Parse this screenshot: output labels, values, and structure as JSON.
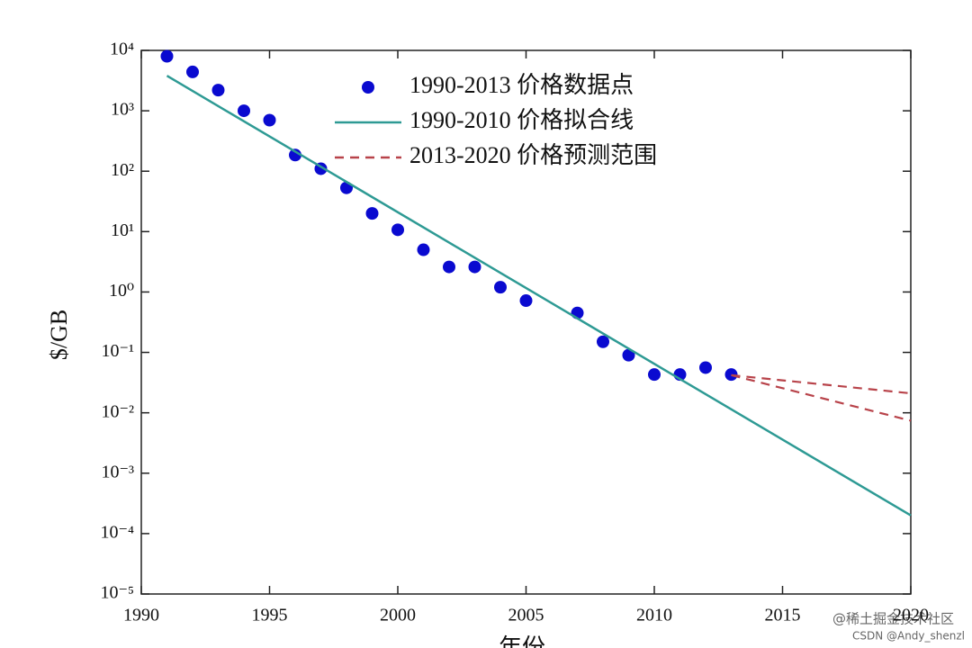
{
  "chart_data": {
    "type": "scatter-line",
    "xlabel": "年份",
    "ylabel": "$/GB",
    "xlim": [
      1990,
      2020
    ],
    "xticks": [
      1990,
      1995,
      2000,
      2005,
      2010,
      2015,
      2020
    ],
    "ylim": [
      1e-05,
      10000
    ],
    "log_y": true,
    "yticks": [
      {
        "value": 1e-05,
        "label": "10⁻⁵"
      },
      {
        "value": 0.0001,
        "label": "10⁻⁴"
      },
      {
        "value": 0.001,
        "label": "10⁻³"
      },
      {
        "value": 0.01,
        "label": "10⁻²"
      },
      {
        "value": 0.1,
        "label": "10⁻¹"
      },
      {
        "value": 1,
        "label": "10⁰"
      },
      {
        "value": 10,
        "label": "10¹"
      },
      {
        "value": 100,
        "label": "10²"
      },
      {
        "value": 1000,
        "label": "10³"
      },
      {
        "value": 10000,
        "label": "10⁴"
      }
    ],
    "legend": "upper center",
    "series": [
      {
        "name": "1990-2013 价格数据点",
        "kind": "scatter",
        "color": "#0a0ad0",
        "x": [
          1991,
          1992,
          1993,
          1994,
          1995,
          1996,
          1997,
          1998,
          1999,
          2000,
          2001,
          2002,
          2003,
          2004,
          2005,
          2007,
          2008,
          2009,
          2010,
          2011,
          2012,
          2013
        ],
        "values": [
          8000,
          4400,
          2200,
          1000,
          700,
          185,
          110,
          53,
          20,
          10.7,
          5,
          2.6,
          2.6,
          1.2,
          0.72,
          0.45,
          0.15,
          0.09,
          0.043,
          0.043,
          0.056,
          0.043
        ]
      },
      {
        "name": "1990-2010 价格拟合线",
        "kind": "line",
        "color": "#2e9a94",
        "x": [
          1991,
          2020
        ],
        "values": [
          3800,
          0.0002
        ]
      },
      {
        "name": "2013-2020 价格预测范围",
        "kind": "dashed",
        "color": "#b8434a",
        "lines": [
          {
            "x": [
              2013,
              2020
            ],
            "values": [
              0.042,
              0.021
            ]
          },
          {
            "x": [
              2013,
              2020
            ],
            "values": [
              0.042,
              0.0074
            ]
          }
        ]
      }
    ]
  },
  "watermark": [
    "@稀土掘金技术社区",
    "CSDN @Andy_shenzl"
  ]
}
